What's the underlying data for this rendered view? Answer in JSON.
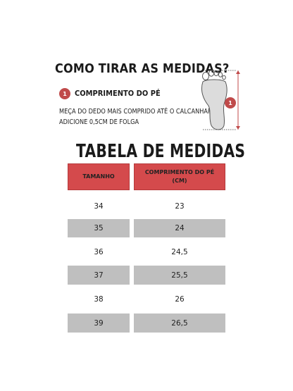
{
  "heading": "COMO TIRAR AS MEDIDAS?",
  "step": {
    "badge": "1",
    "label": "COMPRIMENTO DO PÉ",
    "instruction_line1": "MEÇA DO DEDO MAIS COMPRIDO ATÉ O CALCANHAR.",
    "instruction_line2": "ADICIONE 0,5CM DE FOLGA"
  },
  "illustration": {
    "icon": "foot-outline-icon",
    "marker": "1",
    "colors": {
      "marker": "#c04a4a",
      "line": "#c04a4a"
    }
  },
  "table": {
    "title": "TABELA DE MEDIDAS",
    "headers": {
      "size": "TAMANHO",
      "length_line1": "COMPRIMENTO DO PÉ",
      "length_line2": "(CM)"
    },
    "rows": [
      {
        "size": "34",
        "length": "23"
      },
      {
        "size": "35",
        "length": "24"
      },
      {
        "size": "36",
        "length": "24,5"
      },
      {
        "size": "37",
        "length": "25,5"
      },
      {
        "size": "38",
        "length": "26"
      },
      {
        "size": "39",
        "length": "26,5"
      }
    ],
    "colors": {
      "header": "#d44a4c",
      "shaded_row": "#bfbfbf",
      "plain_row": "#ffffff"
    }
  }
}
